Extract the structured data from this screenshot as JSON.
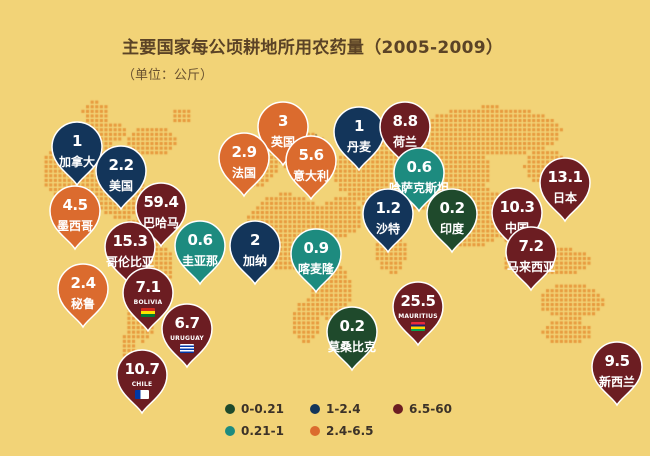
{
  "title": "主要国家每公顷耕地所用农药量（2005-2009）",
  "subtitle": "（单位：公斤）",
  "chart_data": {
    "type": "map",
    "unit": "公斤",
    "points": [
      {
        "name": "加拿大",
        "value": 1.0,
        "group": 2
      },
      {
        "name": "美国",
        "value": 2.2,
        "group": 2
      },
      {
        "name": "墨西哥",
        "value": 4.5,
        "group": 4
      },
      {
        "name": "巴哈马",
        "value": 59.4,
        "group": 5
      },
      {
        "name": "哥伦比亚",
        "value": 15.3,
        "group": 5
      },
      {
        "name": "圭亚那",
        "value": 0.6,
        "group": 3
      },
      {
        "name": "秘鲁",
        "value": 2.4,
        "group": 4
      },
      {
        "name": "BOLIVIA",
        "value": 7.1,
        "group": 5
      },
      {
        "name": "URUGUAY",
        "value": 6.7,
        "group": 5
      },
      {
        "name": "CHILE",
        "value": 10.7,
        "group": 5
      },
      {
        "name": "英国",
        "value": 3.0,
        "group": 4
      },
      {
        "name": "法国",
        "value": 2.9,
        "group": 4
      },
      {
        "name": "意大利",
        "value": 5.6,
        "group": 4
      },
      {
        "name": "丹麦",
        "value": 1.0,
        "group": 2
      },
      {
        "name": "荷兰",
        "value": 8.8,
        "group": 5
      },
      {
        "name": "哈萨克斯坦",
        "value": 0.6,
        "group": 3
      },
      {
        "name": "加纳",
        "value": 2.0,
        "group": 2
      },
      {
        "name": "喀麦隆",
        "value": 0.9,
        "group": 3
      },
      {
        "name": "沙特",
        "value": 1.2,
        "group": 2
      },
      {
        "name": "印度",
        "value": 0.2,
        "group": 1
      },
      {
        "name": "中国",
        "value": 10.3,
        "group": 5
      },
      {
        "name": "日本",
        "value": 13.1,
        "group": 5
      },
      {
        "name": "马来西亚",
        "value": 7.2,
        "group": 5
      },
      {
        "name": "MAURITIUS",
        "value": 25.5,
        "group": 5
      },
      {
        "name": "莫桑比克",
        "value": 0.2,
        "group": 1
      },
      {
        "name": "新西兰",
        "value": 9.5,
        "group": 5
      }
    ],
    "legend": [
      {
        "label": "0-0.21",
        "color": "#1f4a2c"
      },
      {
        "label": "1-2.4",
        "color": "#13355a"
      },
      {
        "label": "6.5-60",
        "color": "#6c1d22"
      },
      {
        "label": "0.21-1",
        "color": "#1d8b7f"
      },
      {
        "label": "2.4-6.5",
        "color": "#db6b2e"
      }
    ]
  }
}
